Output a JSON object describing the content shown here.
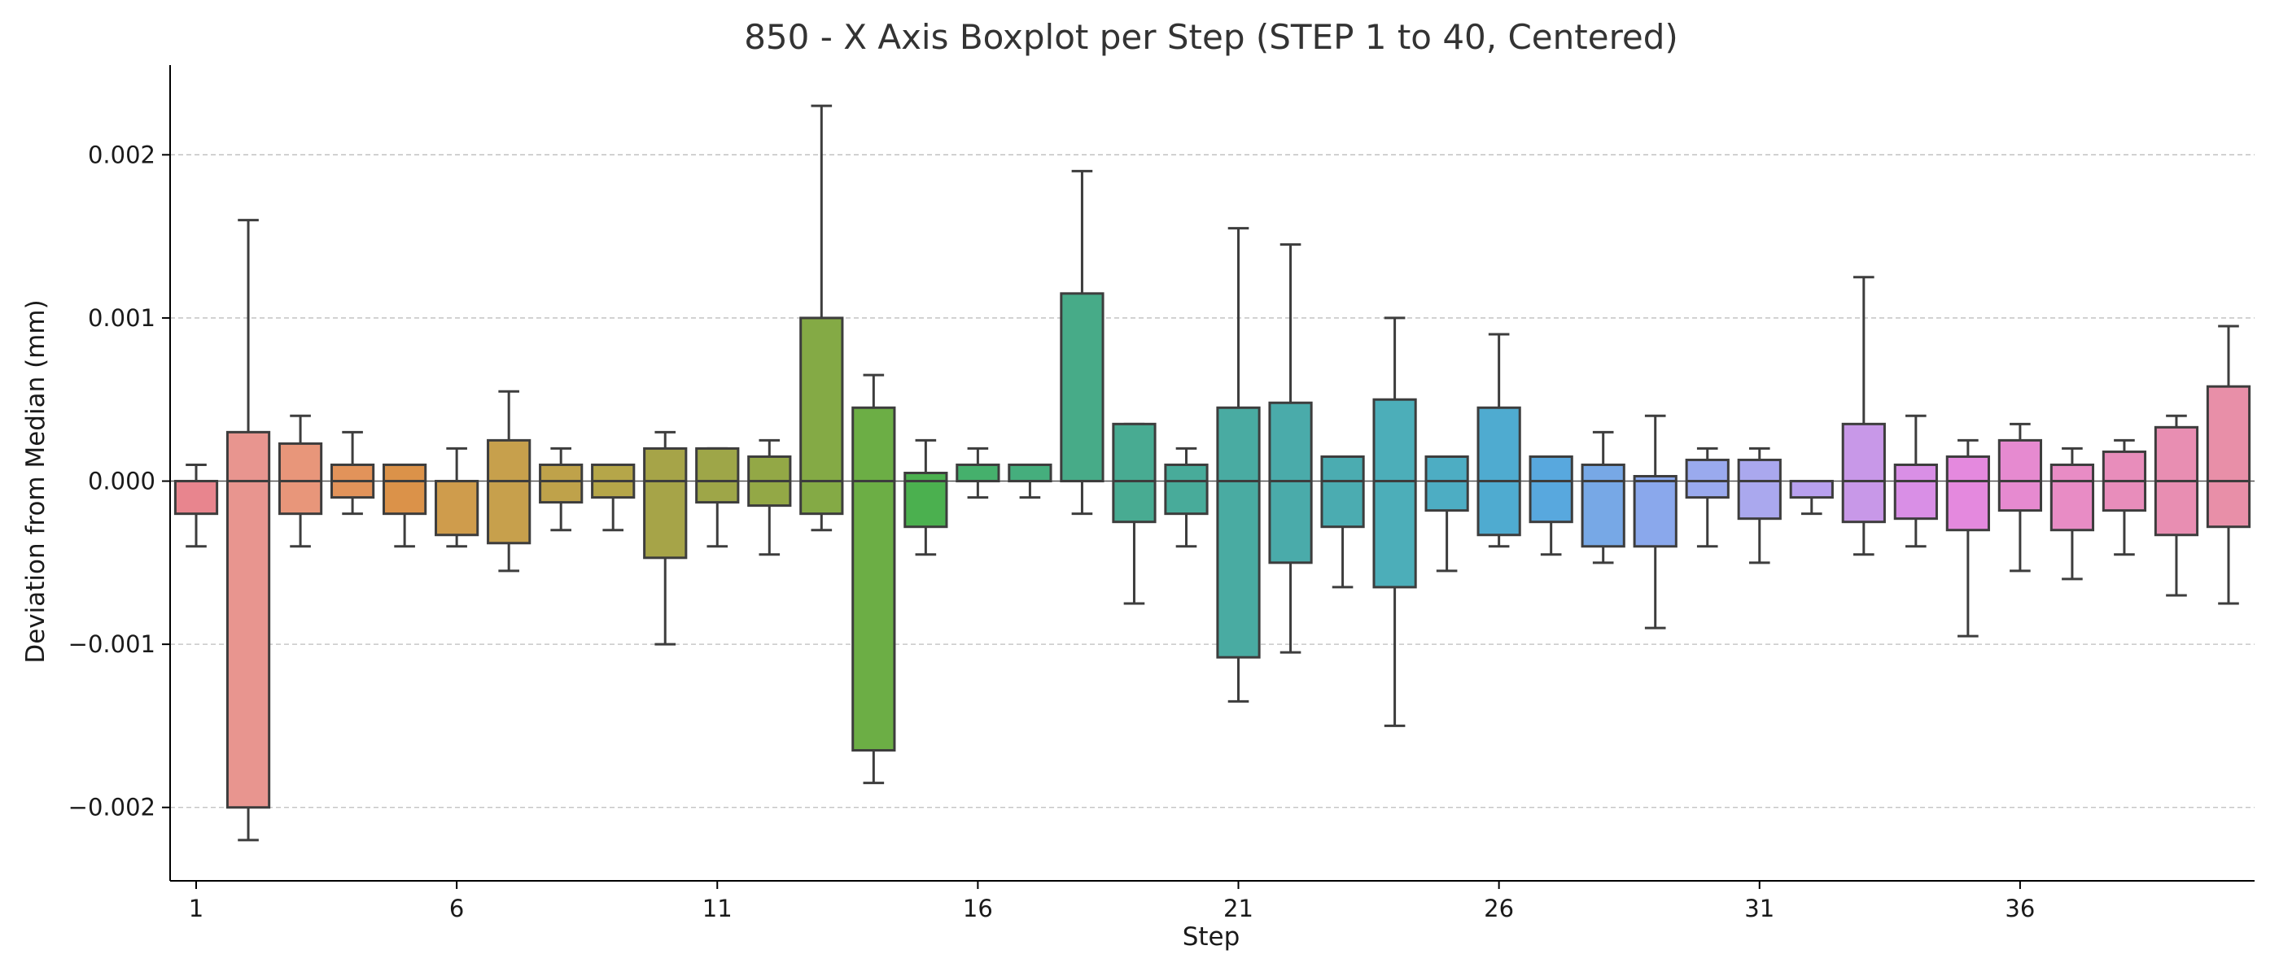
{
  "chart_data": {
    "type": "boxplot",
    "title": "850 - X Axis Boxplot per Step (STEP 1 to 40, Centered)",
    "xlabel": "Step",
    "ylabel": "Deviation from Median (mm)",
    "ylim": [
      -0.00245,
      0.00255
    ],
    "grid": "y-dashed",
    "x_tick_labels": [
      "1",
      "6",
      "11",
      "16",
      "21",
      "26",
      "31",
      "36"
    ],
    "x_tick_steps": [
      1,
      6,
      11,
      16,
      21,
      26,
      31,
      36
    ],
    "y_ticks": [
      -0.002,
      -0.001,
      0.0,
      0.001,
      0.002
    ],
    "y_tick_labels": [
      "−0.002",
      "−0.001",
      "0.000",
      "0.001",
      "0.002"
    ],
    "median_line_color": "#555555",
    "box_edge_color": "#3d3d3d",
    "boxes": [
      {
        "step": 1,
        "whislo": -0.0004,
        "q1": -0.0002,
        "med": 0.0,
        "q3": 0.0,
        "whishi": 0.0001,
        "color": "#e8858e"
      },
      {
        "step": 2,
        "whislo": -0.0022,
        "q1": -0.002,
        "med": 0.0,
        "q3": 0.0003,
        "whishi": 0.0016,
        "color": "#e8958f"
      },
      {
        "step": 3,
        "whislo": -0.0004,
        "q1": -0.0002,
        "med": 0.0,
        "q3": 0.00023,
        "whishi": 0.0004,
        "color": "#e8967a"
      },
      {
        "step": 4,
        "whislo": -0.0002,
        "q1": -0.0001,
        "med": 0.0,
        "q3": 0.0001,
        "whishi": 0.0003,
        "color": "#e2935a"
      },
      {
        "step": 5,
        "whislo": -0.0004,
        "q1": -0.0002,
        "med": 0.0,
        "q3": 0.0001,
        "whishi": 0.0001,
        "color": "#db9249"
      },
      {
        "step": 6,
        "whislo": -0.0004,
        "q1": -0.00033,
        "med": 0.0,
        "q3": 0.0,
        "whishi": 0.0002,
        "color": "#cf9c4c"
      },
      {
        "step": 7,
        "whislo": -0.00055,
        "q1": -0.00038,
        "med": 0.0,
        "q3": 0.00025,
        "whishi": 0.00055,
        "color": "#c7a04c"
      },
      {
        "step": 8,
        "whislo": -0.0003,
        "q1": -0.00013,
        "med": 0.0,
        "q3": 0.0001,
        "whishi": 0.0002,
        "color": "#bfa24a"
      },
      {
        "step": 9,
        "whislo": -0.0003,
        "q1": -0.0001,
        "med": 0.0,
        "q3": 0.0001,
        "whishi": 0.0001,
        "color": "#b5a649"
      },
      {
        "step": 10,
        "whislo": -0.001,
        "q1": -0.00047,
        "med": 0.0,
        "q3": 0.0002,
        "whishi": 0.0003,
        "color": "#a6a448"
      },
      {
        "step": 11,
        "whislo": -0.0004,
        "q1": -0.00013,
        "med": 0.0,
        "q3": 0.0002,
        "whishi": 0.0002,
        "color": "#9ea648"
      },
      {
        "step": 12,
        "whislo": -0.00045,
        "q1": -0.00015,
        "med": 0.0,
        "q3": 0.00015,
        "whishi": 0.00025,
        "color": "#93a846"
      },
      {
        "step": 13,
        "whislo": -0.0003,
        "q1": -0.0002,
        "med": 0.0,
        "q3": 0.001,
        "whishi": 0.0023,
        "color": "#84aa45"
      },
      {
        "step": 14,
        "whislo": -0.00185,
        "q1": -0.00165,
        "med": 0.0,
        "q3": 0.00045,
        "whishi": 0.00065,
        "color": "#6cae45"
      },
      {
        "step": 15,
        "whislo": -0.00045,
        "q1": -0.00028,
        "med": 0.0,
        "q3": 5e-05,
        "whishi": 0.00025,
        "color": "#4bb04f"
      },
      {
        "step": 16,
        "whislo": -0.0001,
        "q1": 0.0,
        "med": 0.0,
        "q3": 0.0001,
        "whishi": 0.0002,
        "color": "#45b06c"
      },
      {
        "step": 17,
        "whislo": -0.0001,
        "q1": 0.0,
        "med": 0.0,
        "q3": 0.0001,
        "whishi": 0.0001,
        "color": "#45ae7d"
      },
      {
        "step": 18,
        "whislo": -0.0002,
        "q1": 0.0,
        "med": 0.0,
        "q3": 0.00115,
        "whishi": 0.0019,
        "color": "#47ab88"
      },
      {
        "step": 19,
        "whislo": -0.00075,
        "q1": -0.00025,
        "med": 0.0,
        "q3": 0.00035,
        "whishi": 0.00035,
        "color": "#48ab92"
      },
      {
        "step": 20,
        "whislo": -0.0004,
        "q1": -0.0002,
        "med": 0.0,
        "q3": 0.0001,
        "whishi": 0.0002,
        "color": "#48ab9a"
      },
      {
        "step": 21,
        "whislo": -0.00135,
        "q1": -0.00108,
        "med": 0.0,
        "q3": 0.00045,
        "whishi": 0.00155,
        "color": "#49aba2"
      },
      {
        "step": 22,
        "whislo": -0.00105,
        "q1": -0.0005,
        "med": 0.0,
        "q3": 0.00048,
        "whishi": 0.00145,
        "color": "#4aabaa"
      },
      {
        "step": 23,
        "whislo": -0.00065,
        "q1": -0.00028,
        "med": 0.0,
        "q3": 0.00015,
        "whishi": 0.00015,
        "color": "#4bacb1"
      },
      {
        "step": 24,
        "whislo": -0.0015,
        "q1": -0.00065,
        "med": 0.0,
        "q3": 0.0005,
        "whishi": 0.001,
        "color": "#4caeb9"
      },
      {
        "step": 25,
        "whislo": -0.00055,
        "q1": -0.00018,
        "med": 0.0,
        "q3": 0.00015,
        "whishi": 0.00015,
        "color": "#4dadc3"
      },
      {
        "step": 26,
        "whislo": -0.0004,
        "q1": -0.00033,
        "med": 0.0,
        "q3": 0.00045,
        "whishi": 0.0009,
        "color": "#4fabd0"
      },
      {
        "step": 27,
        "whislo": -0.00045,
        "q1": -0.00025,
        "med": 0.0,
        "q3": 0.00015,
        "whishi": 0.00015,
        "color": "#58a8de"
      },
      {
        "step": 28,
        "whislo": -0.0005,
        "q1": -0.0004,
        "med": 0.0,
        "q3": 0.0001,
        "whishi": 0.0003,
        "color": "#77a8e6"
      },
      {
        "step": 29,
        "whislo": -0.0009,
        "q1": -0.0004,
        "med": 0.0,
        "q3": 3e-05,
        "whishi": 0.0004,
        "color": "#8aa8ec"
      },
      {
        "step": 30,
        "whislo": -0.0004,
        "q1": -0.0001,
        "med": 0.0,
        "q3": 0.00013,
        "whishi": 0.0002,
        "color": "#9aaaee"
      },
      {
        "step": 31,
        "whislo": -0.0005,
        "q1": -0.00023,
        "med": 0.0,
        "q3": 0.00013,
        "whishi": 0.0002,
        "color": "#aaa8ee"
      },
      {
        "step": 32,
        "whislo": -0.0002,
        "q1": -0.0001,
        "med": 0.0,
        "q3": 0.0,
        "whishi": 0.0,
        "color": "#b8a0ee"
      },
      {
        "step": 33,
        "whislo": -0.00045,
        "q1": -0.00025,
        "med": 0.0,
        "q3": 0.00035,
        "whishi": 0.00125,
        "color": "#c898e8"
      },
      {
        "step": 34,
        "whislo": -0.0004,
        "q1": -0.00023,
        "med": 0.0,
        "q3": 0.0001,
        "whishi": 0.0004,
        "color": "#d98fe6"
      },
      {
        "step": 35,
        "whislo": -0.00095,
        "q1": -0.0003,
        "med": 0.0,
        "q3": 0.00015,
        "whishi": 0.00025,
        "color": "#e489de"
      },
      {
        "step": 36,
        "whislo": -0.00055,
        "q1": -0.00018,
        "med": 0.0,
        "q3": 0.00025,
        "whishi": 0.00035,
        "color": "#e68ad0"
      },
      {
        "step": 37,
        "whislo": -0.0006,
        "q1": -0.0003,
        "med": 0.0,
        "q3": 0.0001,
        "whishi": 0.0002,
        "color": "#e88cc5"
      },
      {
        "step": 38,
        "whislo": -0.00045,
        "q1": -0.00018,
        "med": 0.0,
        "q3": 0.00018,
        "whishi": 0.00025,
        "color": "#e88dbb"
      },
      {
        "step": 39,
        "whislo": -0.0007,
        "q1": -0.00033,
        "med": 0.0,
        "q3": 0.00033,
        "whishi": 0.0004,
        "color": "#e88eb2"
      },
      {
        "step": 40,
        "whislo": -0.00075,
        "q1": -0.00028,
        "med": 0.0,
        "q3": 0.00058,
        "whishi": 0.00095,
        "color": "#e88fa8"
      }
    ]
  }
}
